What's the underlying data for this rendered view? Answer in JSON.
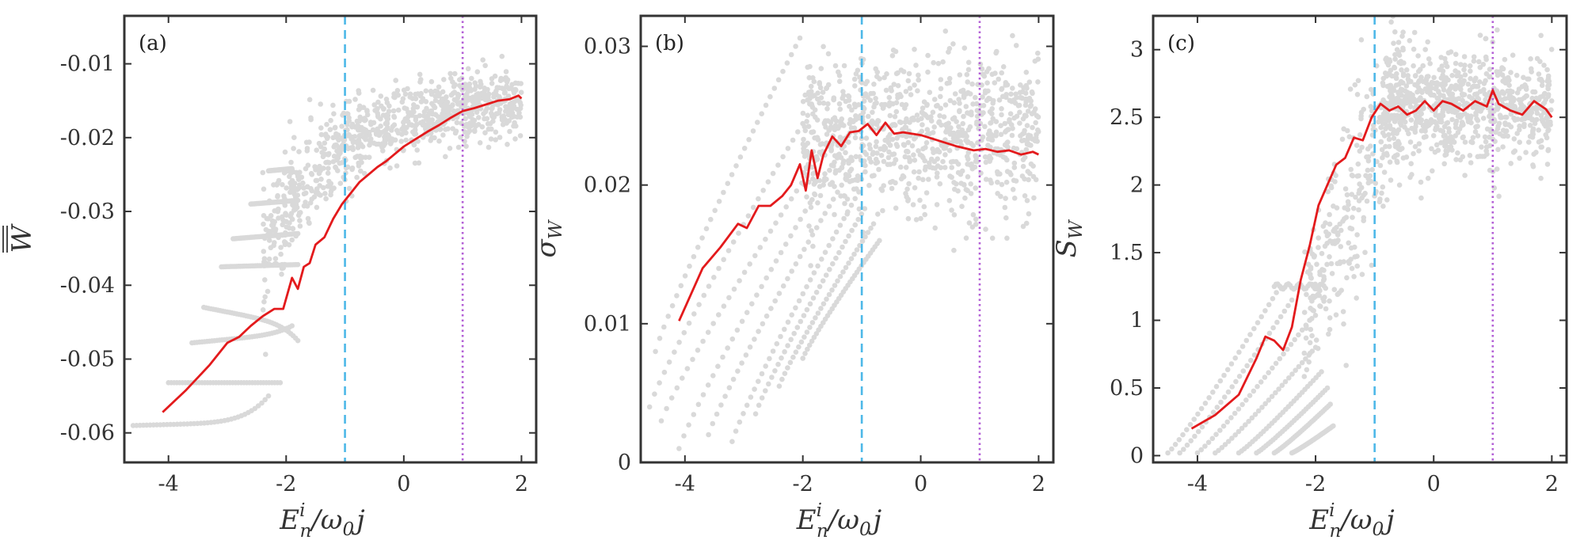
{
  "colors": {
    "frame": "#333333",
    "scatter": "#d9d9d9",
    "mean_line": "#e31a1c",
    "dashed_line": "#4db8e8",
    "dotted_line": "#b35fd6"
  },
  "chart_data": [
    {
      "type": "scatter",
      "panel_label": "(a)",
      "xlabel_main": "E",
      "xlabel_sup": "i",
      "xlabel_sub": "n",
      "xlabel_rest": "/ω",
      "xlabel_sub2": "0",
      "xlabel_tail": "j",
      "ylabel_main": "W",
      "ylabel_overline": "double",
      "xlim": [
        -4.75,
        2.25
      ],
      "ylim": [
        -0.064,
        -0.0035
      ],
      "xticks": [
        -4,
        -2,
        0,
        2
      ],
      "xtick_labels": [
        "-4",
        "-2",
        "0",
        "2"
      ],
      "yticks": [
        -0.06,
        -0.05,
        -0.04,
        -0.03,
        -0.02,
        -0.01
      ],
      "ytick_labels": [
        "-0.06",
        "-0.05",
        "-0.04",
        "-0.03",
        "-0.02",
        "-0.01"
      ],
      "vlines": [
        {
          "x": -1,
          "style": "dashed"
        },
        {
          "x": 1,
          "style": "dotted"
        }
      ],
      "mean_curve": {
        "x": [
          -4.1,
          -3.7,
          -3.3,
          -3.0,
          -2.8,
          -2.6,
          -2.4,
          -2.2,
          -2.05,
          -1.9,
          -1.8,
          -1.7,
          -1.6,
          -1.5,
          -1.35,
          -1.2,
          -1.05,
          -0.9,
          -0.75,
          -0.6,
          -0.45,
          -0.3,
          -0.15,
          0.0,
          0.2,
          0.4,
          0.6,
          0.8,
          1.0,
          1.2,
          1.4,
          1.6,
          1.8,
          1.95,
          2.0
        ],
        "y": [
          -0.0572,
          -0.0542,
          -0.0508,
          -0.0478,
          -0.047,
          -0.0455,
          -0.0442,
          -0.0432,
          -0.0432,
          -0.039,
          -0.0405,
          -0.0375,
          -0.037,
          -0.0345,
          -0.0335,
          -0.031,
          -0.029,
          -0.0275,
          -0.026,
          -0.025,
          -0.024,
          -0.0232,
          -0.0222,
          -0.0212,
          -0.0202,
          -0.0192,
          -0.0183,
          -0.0173,
          -0.0164,
          -0.016,
          -0.0155,
          -0.015,
          -0.0148,
          -0.0143,
          -0.0147
        ]
      }
    },
    {
      "type": "scatter",
      "panel_label": "(b)",
      "xlabel_main": "E",
      "xlabel_sup": "i",
      "xlabel_sub": "n",
      "xlabel_rest": "/ω",
      "xlabel_sub2": "0",
      "xlabel_tail": "j",
      "ylabel_main": "σ",
      "ylabel_sub": "W",
      "xlim": [
        -4.75,
        2.25
      ],
      "ylim": [
        0.0,
        0.0322
      ],
      "xticks": [
        -4,
        -2,
        0,
        2
      ],
      "xtick_labels": [
        "-4",
        "-2",
        "0",
        "2"
      ],
      "yticks": [
        0.0,
        0.01,
        0.02,
        0.03
      ],
      "ytick_labels": [
        "0",
        "0.01",
        "0.02",
        "0.03"
      ],
      "vlines": [
        {
          "x": -1,
          "style": "dashed"
        },
        {
          "x": 1,
          "style": "dotted"
        }
      ],
      "mean_curve": {
        "x": [
          -4.1,
          -3.7,
          -3.4,
          -3.1,
          -2.95,
          -2.75,
          -2.55,
          -2.35,
          -2.2,
          -2.05,
          -1.95,
          -1.85,
          -1.75,
          -1.65,
          -1.5,
          -1.35,
          -1.2,
          -1.05,
          -0.9,
          -0.75,
          -0.6,
          -0.45,
          -0.3,
          0.0,
          0.3,
          0.6,
          0.9,
          1.1,
          1.3,
          1.5,
          1.7,
          1.9,
          2.0
        ],
        "y": [
          0.0102,
          0.014,
          0.0155,
          0.0172,
          0.0169,
          0.0185,
          0.0185,
          0.0192,
          0.02,
          0.0215,
          0.0196,
          0.0225,
          0.0205,
          0.0222,
          0.0235,
          0.0228,
          0.0238,
          0.0239,
          0.0244,
          0.0236,
          0.0245,
          0.0237,
          0.0238,
          0.0236,
          0.0232,
          0.0228,
          0.0225,
          0.0226,
          0.0224,
          0.0225,
          0.0222,
          0.0224,
          0.0222
        ]
      }
    },
    {
      "type": "scatter",
      "panel_label": "(c)",
      "xlabel_main": "E",
      "xlabel_sup": "i",
      "xlabel_sub": "n",
      "xlabel_rest": "/ω",
      "xlabel_sub2": "0",
      "xlabel_tail": "j",
      "ylabel_main": "S",
      "ylabel_sub": "W",
      "xlim": [
        -4.75,
        2.25
      ],
      "ylim": [
        -0.05,
        3.25
      ],
      "xticks": [
        -4,
        -2,
        0,
        2
      ],
      "xtick_labels": [
        "-4",
        "-2",
        "0",
        "2"
      ],
      "yticks": [
        0,
        0.5,
        1,
        1.5,
        2,
        2.5,
        3
      ],
      "ytick_labels": [
        "0",
        "0.5",
        "1",
        "1.5",
        "2",
        "2.5",
        "3"
      ],
      "vlines": [
        {
          "x": -1,
          "style": "dashed"
        },
        {
          "x": 1,
          "style": "dotted"
        }
      ],
      "mean_curve": {
        "x": [
          -4.1,
          -3.7,
          -3.3,
          -3.0,
          -2.85,
          -2.7,
          -2.55,
          -2.4,
          -2.25,
          -2.1,
          -1.95,
          -1.8,
          -1.65,
          -1.5,
          -1.35,
          -1.2,
          -1.05,
          -0.9,
          -0.75,
          -0.6,
          -0.45,
          -0.3,
          -0.15,
          0.0,
          0.15,
          0.3,
          0.5,
          0.7,
          0.9,
          1.0,
          1.1,
          1.3,
          1.5,
          1.7,
          1.9,
          2.0
        ],
        "y": [
          0.2,
          0.3,
          0.45,
          0.72,
          0.88,
          0.85,
          0.78,
          0.95,
          1.3,
          1.55,
          1.85,
          2.0,
          2.15,
          2.2,
          2.35,
          2.33,
          2.5,
          2.6,
          2.55,
          2.58,
          2.52,
          2.55,
          2.62,
          2.55,
          2.62,
          2.6,
          2.55,
          2.62,
          2.58,
          2.7,
          2.6,
          2.55,
          2.52,
          2.62,
          2.56,
          2.5
        ]
      }
    }
  ]
}
